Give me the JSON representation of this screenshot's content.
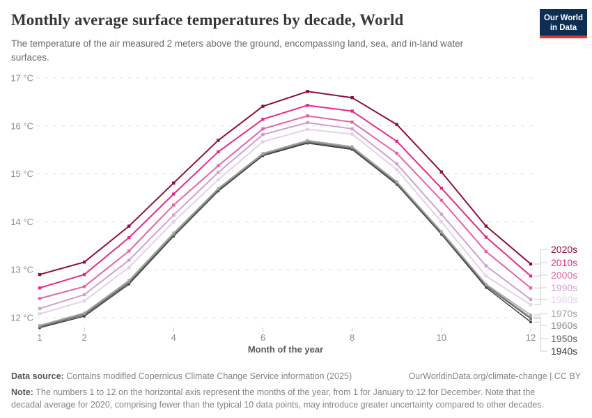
{
  "header": {
    "title": "Monthly average surface temperatures by decade, World",
    "subtitle": "The temperature of the air measured 2 meters above the ground, encompassing land, sea, and in-land water surfaces.",
    "logo_line1": "Our World",
    "logo_line2": "in Data"
  },
  "chart_data": {
    "type": "line",
    "x": [
      1,
      2,
      3,
      4,
      5,
      6,
      7,
      8,
      9,
      10,
      11,
      12
    ],
    "xlabel": "Month of the year",
    "xticks": [
      1,
      2,
      4,
      6,
      8,
      10,
      12
    ],
    "ylim": [
      12,
      17
    ],
    "yticks": [
      12,
      13,
      14,
      15,
      16,
      17
    ],
    "ytick_suffix": " °C",
    "grid": "horizontal-dashed",
    "legend_position": "right",
    "series": [
      {
        "name": "2020s",
        "color": "#8e0e3f",
        "values": [
          12.9,
          13.16,
          13.91,
          14.81,
          15.7,
          16.41,
          16.72,
          16.59,
          16.03,
          15.04,
          13.91,
          13.12
        ]
      },
      {
        "name": "2010s",
        "color": "#e7298a",
        "values": [
          12.62,
          12.9,
          13.67,
          14.58,
          15.46,
          16.14,
          16.43,
          16.31,
          15.68,
          14.7,
          13.68,
          12.87
        ]
      },
      {
        "name": "2000s",
        "color": "#e563a9",
        "values": [
          12.4,
          12.65,
          13.39,
          14.35,
          15.17,
          15.94,
          16.21,
          16.08,
          15.43,
          14.45,
          13.38,
          12.62
        ]
      },
      {
        "name": "1990s",
        "color": "#cf9fd2",
        "values": [
          12.19,
          12.48,
          13.2,
          14.14,
          15.03,
          15.82,
          16.07,
          15.94,
          15.21,
          14.16,
          13.08,
          12.38
        ]
      },
      {
        "name": "1980s",
        "color": "#e4d1e8",
        "values": [
          12.08,
          12.35,
          13.05,
          14.0,
          14.88,
          15.67,
          15.93,
          15.83,
          15.09,
          14.0,
          12.87,
          12.27
        ]
      },
      {
        "name": "1970s",
        "color": "#a5a5a5",
        "values": [
          11.84,
          12.1,
          12.78,
          13.77,
          14.7,
          15.43,
          15.7,
          15.57,
          14.84,
          13.8,
          12.7,
          12.06
        ]
      },
      {
        "name": "1960s",
        "color": "#8d8d8d",
        "values": [
          11.82,
          12.08,
          12.75,
          13.74,
          14.68,
          15.41,
          15.68,
          15.55,
          14.82,
          13.78,
          12.68,
          12.01
        ]
      },
      {
        "name": "1950s",
        "color": "#5f5f5f",
        "values": [
          11.81,
          12.06,
          12.73,
          13.72,
          14.66,
          15.4,
          15.66,
          15.53,
          14.8,
          13.76,
          12.66,
          11.98
        ]
      },
      {
        "name": "1940s",
        "color": "#3b3b3b",
        "values": [
          11.79,
          12.03,
          12.7,
          13.7,
          14.64,
          15.38,
          15.64,
          15.51,
          14.78,
          13.74,
          12.63,
          11.91
        ]
      }
    ]
  },
  "footer": {
    "data_source_label": "Data source:",
    "data_source": "Contains modified Copernicus Climate Change Service information (2025)",
    "link": "OurWorldinData.org/climate-change | CC BY",
    "note_label": "Note:",
    "note": "The numbers 1 to 12 on the horizontal axis represent the months of the year, from 1 for January to 12 for December. Note that the decadal average for 2020, comprising fewer than the typical 10 data points, may introduce greater uncertainty compared to other decades."
  }
}
